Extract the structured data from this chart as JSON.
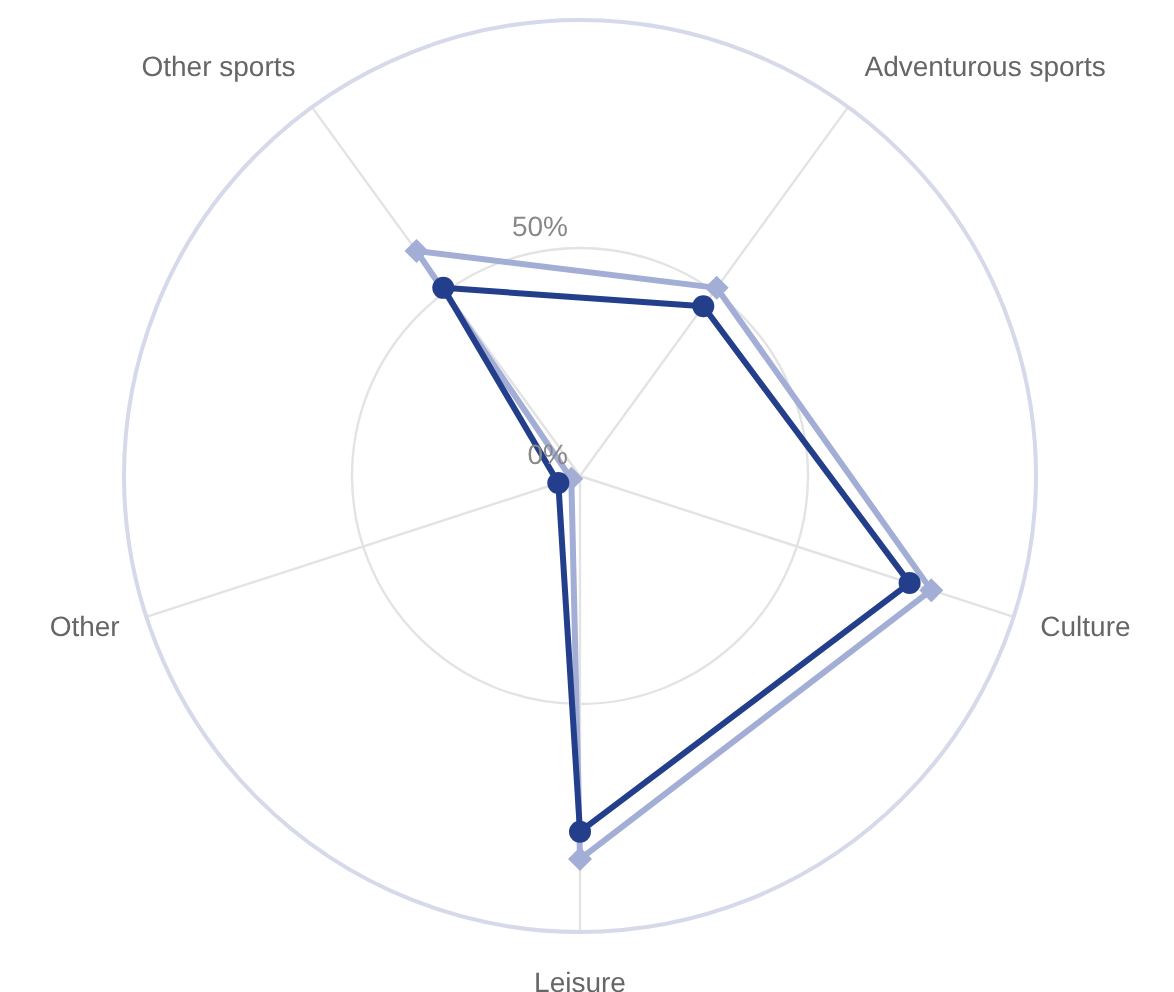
{
  "chart_data": {
    "type": "radar",
    "categories": [
      "Adventurous sports",
      "Culture",
      "Leisure",
      "Other",
      "Other sports"
    ],
    "ylim": [
      0,
      100
    ],
    "yticks": [
      {
        "value": 0,
        "label": "0%"
      },
      {
        "value": 50,
        "label": "50%"
      }
    ],
    "grid": true,
    "series": [
      {
        "color": "#a3aed6",
        "marker": "diamond",
        "values": [
          51,
          81,
          84,
          2,
          61
        ]
      },
      {
        "color": "#233e8b",
        "marker": "circle",
        "values": [
          46,
          76,
          78,
          5,
          51
        ]
      }
    ]
  }
}
